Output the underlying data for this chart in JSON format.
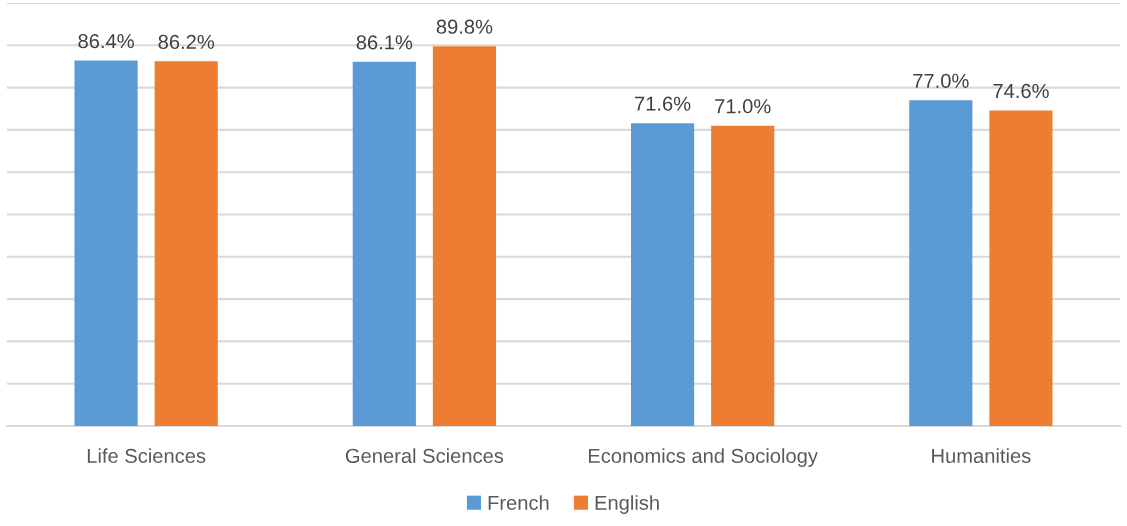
{
  "chart_data": {
    "type": "bar",
    "categories": [
      "Life Sciences",
      "General Sciences",
      "Economics and Sociology",
      "Humanities"
    ],
    "series": [
      {
        "name": "French",
        "color": "#5b9bd5",
        "values": [
          86.4,
          86.1,
          71.6,
          77.0
        ],
        "value_labels": [
          "86.4%",
          "86.1%",
          "71.6%",
          "77.0%"
        ]
      },
      {
        "name": "English",
        "color": "#ed7d31",
        "values": [
          86.2,
          89.8,
          71.0,
          74.6
        ],
        "value_labels": [
          "86.2%",
          "89.8%",
          "71.0%",
          "74.6%"
        ]
      }
    ],
    "ylim": [
      0,
      100
    ],
    "yticks": [
      {
        "value": 0,
        "label": null
      },
      {
        "value": 10,
        "label": null
      },
      {
        "value": 20,
        "label": null
      },
      {
        "value": 30,
        "label": null
      },
      {
        "value": 40,
        "label": null
      },
      {
        "value": 50,
        "label": null
      },
      {
        "value": 60,
        "label": null
      },
      {
        "value": 70,
        "label": null
      },
      {
        "value": 80,
        "label": null
      },
      {
        "value": 90,
        "label": null
      },
      {
        "value": 100,
        "label": null
      }
    ],
    "grid": "y",
    "legend": "bottom",
    "tick_labels": "x"
  }
}
